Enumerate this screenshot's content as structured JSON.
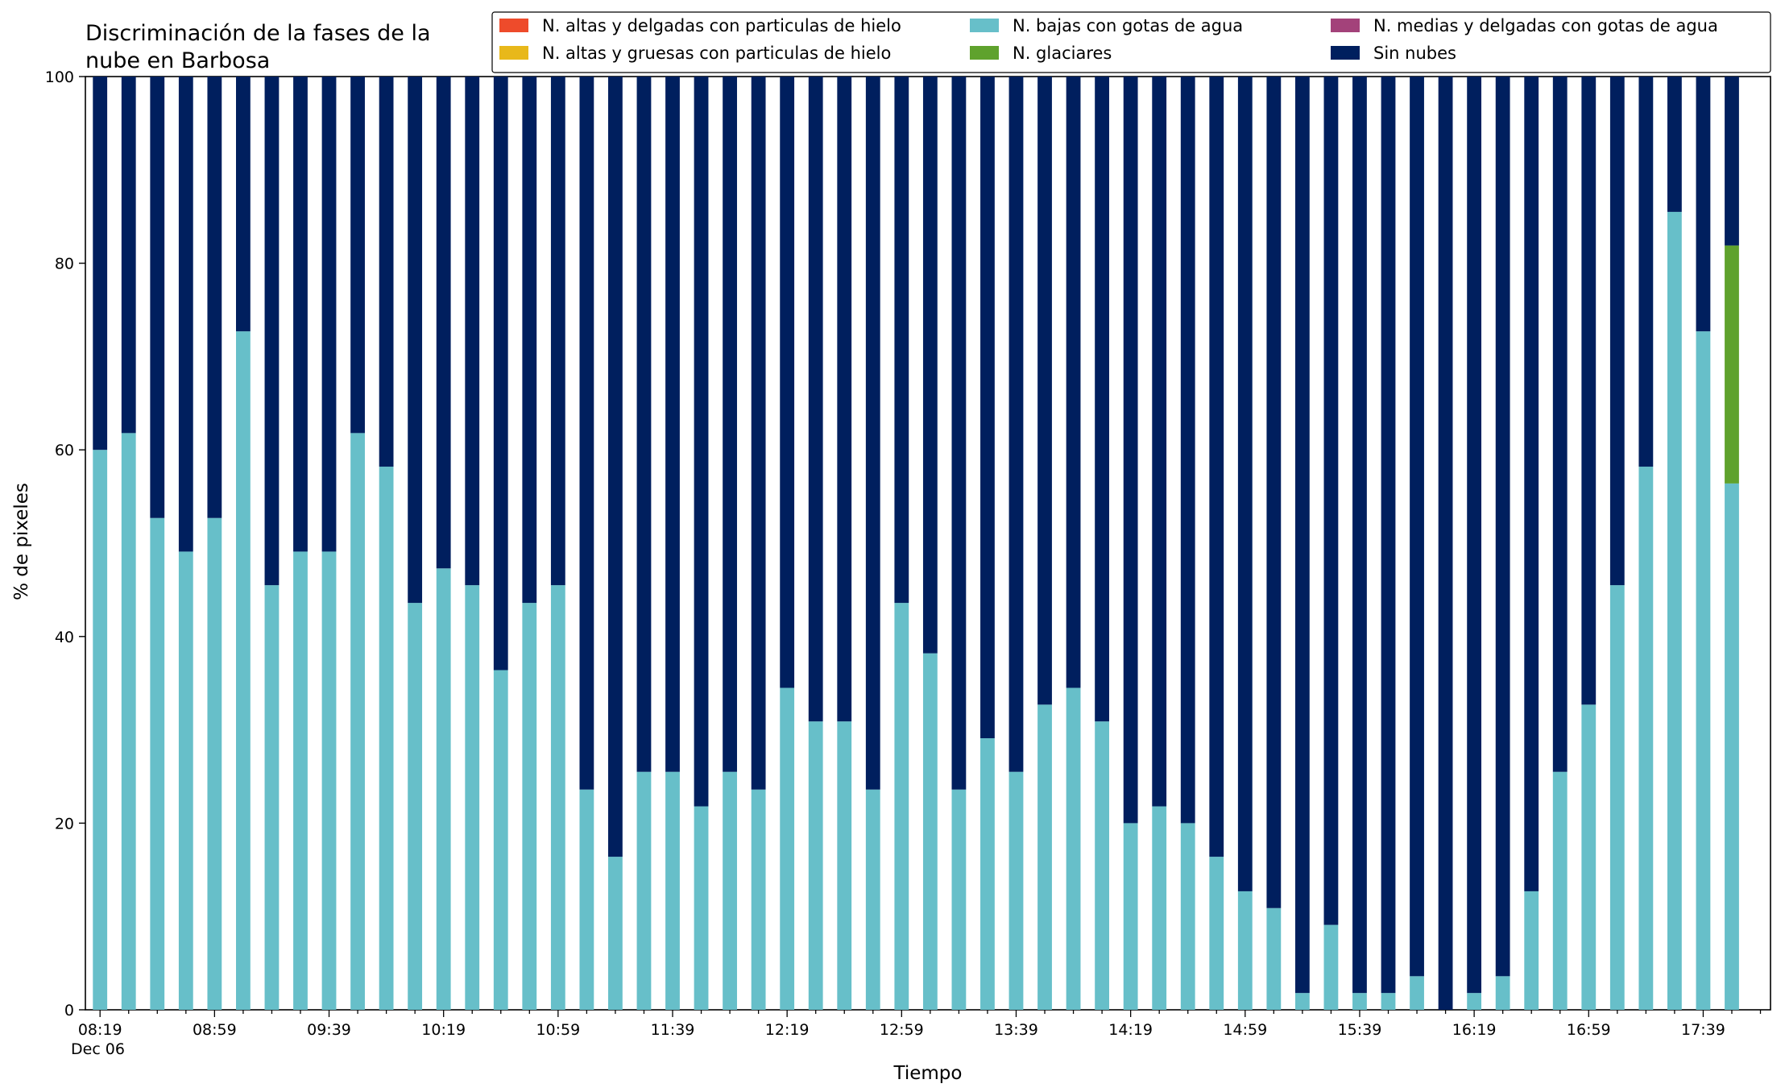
{
  "chart_data": {
    "type": "bar",
    "stacked": true,
    "title_line1": "Discriminación de la fases de la",
    "title_line2": "nube en Barbosa",
    "xlabel": "Tiempo",
    "ylabel": "% de pixeles",
    "ylim": [
      0,
      100
    ],
    "yticks": [
      0,
      20,
      40,
      60,
      80,
      100
    ],
    "tick_labels": [
      "08:19",
      "08:59",
      "09:39",
      "10:19",
      "10:59",
      "11:39",
      "12:19",
      "12:59",
      "13:39",
      "14:19",
      "14:59",
      "15:39",
      "16:19",
      "16:59",
      "17:39"
    ],
    "date_label": "Dec 06",
    "categories": [
      "08:19",
      "08:29",
      "08:39",
      "08:49",
      "08:59",
      "09:09",
      "09:19",
      "09:29",
      "09:39",
      "09:49",
      "09:59",
      "10:09",
      "10:19",
      "10:29",
      "10:39",
      "10:49",
      "10:59",
      "11:09",
      "11:19",
      "11:29",
      "11:39",
      "11:49",
      "11:59",
      "12:09",
      "12:19",
      "12:29",
      "12:39",
      "12:49",
      "12:59",
      "13:09",
      "13:19",
      "13:29",
      "13:39",
      "13:49",
      "13:59",
      "14:09",
      "14:19",
      "14:29",
      "14:39",
      "14:49",
      "14:59",
      "15:09",
      "15:19",
      "15:29",
      "15:39",
      "15:49",
      "15:59",
      "16:09",
      "16:19",
      "16:29",
      "16:39",
      "16:49",
      "16:59",
      "17:09",
      "17:19",
      "17:29",
      "17:39",
      "17:49"
    ],
    "legend_position": "top-right",
    "series": [
      {
        "name": "N. altas y delgadas con particulas de hielo",
        "color": "#ee4b2b",
        "values": [
          0,
          0,
          0,
          0,
          0,
          0,
          0,
          0,
          0,
          0,
          0,
          0,
          0,
          0,
          0,
          0,
          0,
          0,
          0,
          0,
          0,
          0,
          0,
          0,
          0,
          0,
          0,
          0,
          0,
          0,
          0,
          0,
          0,
          0,
          0,
          0,
          0,
          0,
          0,
          0,
          0,
          0,
          0,
          0,
          0,
          0,
          0,
          0,
          0,
          0,
          0,
          0,
          0,
          0,
          0,
          0,
          0,
          0
        ]
      },
      {
        "name": "N. altas y gruesas con particulas de hielo",
        "color": "#e8b81a",
        "values": [
          0,
          0,
          0,
          0,
          0,
          0,
          0,
          0,
          0,
          0,
          0,
          0,
          0,
          0,
          0,
          0,
          0,
          0,
          0,
          0,
          0,
          0,
          0,
          0,
          0,
          0,
          0,
          0,
          0,
          0,
          0,
          0,
          0,
          0,
          0,
          0,
          0,
          0,
          0,
          0,
          0,
          0,
          0,
          0,
          0,
          0,
          0,
          0,
          0,
          0,
          0,
          0,
          0,
          0,
          0,
          0,
          0,
          0
        ]
      },
      {
        "name": "N. bajas con gotas de agua",
        "color": "#67bfc9",
        "values": [
          60,
          61.8,
          52.7,
          49.1,
          52.7,
          72.7,
          45.5,
          49.1,
          49.1,
          61.8,
          58.2,
          43.6,
          47.3,
          45.5,
          36.4,
          43.6,
          45.5,
          23.6,
          16.4,
          25.5,
          25.5,
          21.8,
          25.5,
          23.6,
          34.5,
          30.9,
          30.9,
          23.6,
          43.6,
          38.2,
          23.6,
          29.1,
          25.5,
          32.7,
          34.5,
          30.9,
          20,
          21.8,
          20,
          16.4,
          12.7,
          10.9,
          1.8,
          9.1,
          1.8,
          1.8,
          3.6,
          0,
          1.8,
          3.6,
          12.7,
          25.5,
          32.7,
          45.5,
          58.2,
          85.5,
          72.7,
          56.4
        ]
      },
      {
        "name": "N. glaciares",
        "color": "#5fa22d",
        "values": [
          0,
          0,
          0,
          0,
          0,
          0,
          0,
          0,
          0,
          0,
          0,
          0,
          0,
          0,
          0,
          0,
          0,
          0,
          0,
          0,
          0,
          0,
          0,
          0,
          0,
          0,
          0,
          0,
          0,
          0,
          0,
          0,
          0,
          0,
          0,
          0,
          0,
          0,
          0,
          0,
          0,
          0,
          0,
          0,
          0,
          0,
          0,
          0,
          0,
          0,
          0,
          0,
          0,
          0,
          0,
          0,
          0,
          25.5
        ]
      },
      {
        "name": "N. medias y delgadas con gotas de agua",
        "color": "#a3427a",
        "values": [
          0,
          0,
          0,
          0,
          0,
          0,
          0,
          0,
          0,
          0,
          0,
          0,
          0,
          0,
          0,
          0,
          0,
          0,
          0,
          0,
          0,
          0,
          0,
          0,
          0,
          0,
          0,
          0,
          0,
          0,
          0,
          0,
          0,
          0,
          0,
          0,
          0,
          0,
          0,
          0,
          0,
          0,
          0,
          0,
          0,
          0,
          0,
          0,
          0,
          0,
          0,
          0,
          0,
          0,
          0,
          0,
          0,
          0
        ]
      },
      {
        "name": "Sin nubes",
        "color": "#001f5e",
        "values": [
          40,
          38.2,
          47.3,
          50.9,
          47.3,
          27.3,
          54.5,
          50.9,
          50.9,
          38.2,
          41.8,
          56.4,
          52.7,
          54.5,
          63.6,
          56.4,
          54.5,
          76.4,
          83.6,
          74.5,
          74.5,
          78.2,
          74.5,
          76.4,
          65.5,
          69.1,
          69.1,
          76.4,
          56.4,
          61.8,
          76.4,
          70.9,
          74.5,
          67.3,
          65.5,
          69.1,
          80,
          78.2,
          80,
          83.6,
          87.3,
          89.1,
          98.2,
          90.9,
          98.2,
          98.2,
          96.4,
          100,
          98.2,
          96.4,
          87.3,
          74.5,
          67.3,
          54.5,
          41.8,
          14.5,
          27.3,
          18.1
        ]
      }
    ],
    "legend_order": [
      0,
      1,
      2,
      3,
      4,
      5
    ]
  }
}
